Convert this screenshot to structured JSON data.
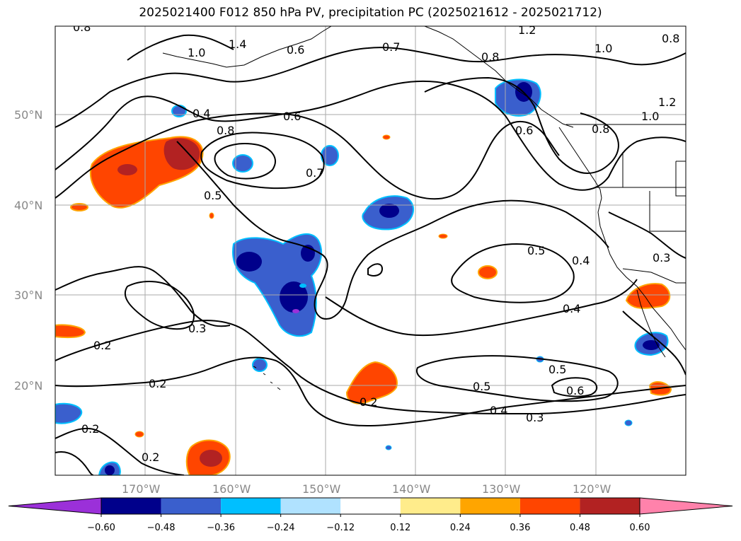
{
  "title": "2025021400 F012 850 hPa PV, precipitation PC (2025021612 - 2025021712)",
  "latitude_labels": [
    "50°N",
    "40°N",
    "30°N",
    "20°N"
  ],
  "longitude_labels": [
    "170°W",
    "160°W",
    "150°W",
    "140°W",
    "130°W",
    "120°W"
  ],
  "contour_labels": [
    "0.8",
    "1.4",
    "1.0",
    "0.6",
    "0.7",
    "1.2",
    "0.8",
    "1.0",
    "0.8",
    "0.4",
    "0.6",
    "0.8",
    "0.7",
    "0.6",
    "0.8",
    "1.0",
    "1.2",
    "0.5",
    "0.5",
    "0.4",
    "0.3",
    "0.4",
    "0.3",
    "0.2",
    "0.2",
    "0.5",
    "0.6",
    "0.5",
    "0.4",
    "0.3",
    "0.2",
    "0.2",
    "0.2"
  ],
  "colorbar": {
    "ticks": [
      "−0.60",
      "−0.48",
      "−0.36",
      "−0.24",
      "−0.12",
      "0.12",
      "0.24",
      "0.36",
      "0.48",
      "0.60"
    ],
    "colors": [
      "#9b30d9",
      "#00008b",
      "#3a5fcd",
      "#00bfff",
      "#b0e2ff",
      "#ffffff",
      "#ffec8b",
      "#ffa500",
      "#ff4500",
      "#b22222",
      "#ff82ab"
    ]
  }
}
